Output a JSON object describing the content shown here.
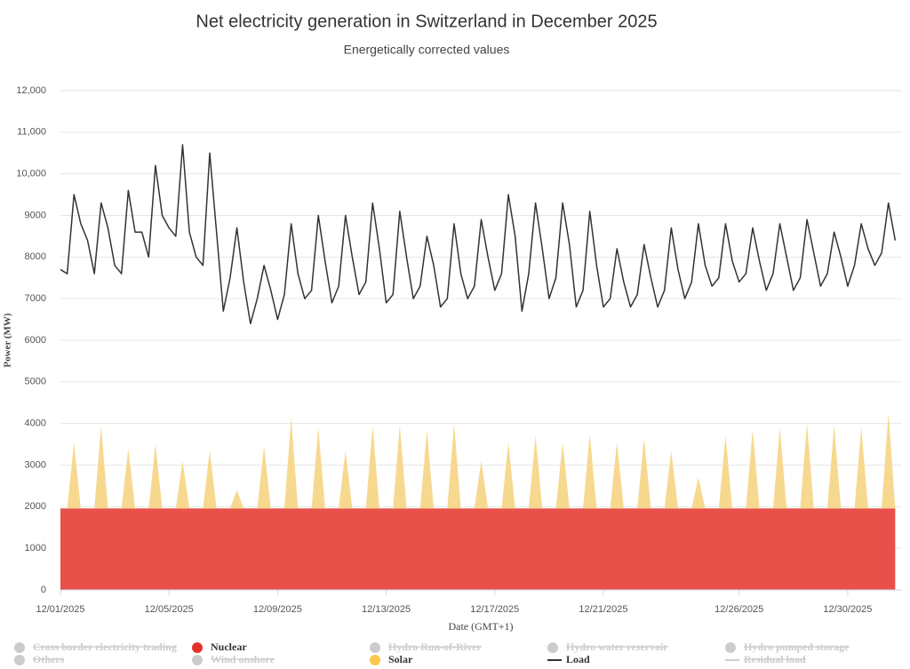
{
  "chart_data": {
    "type": "line",
    "title": "Net electricity generation in Switzerland in December 2025",
    "subtitle": "Energetically corrected values",
    "y_label": "Power (MW)",
    "x_label": "Date (GMT+1)",
    "grid": true,
    "ylim": [
      0,
      12000
    ],
    "yticks": [
      0,
      1000,
      2000,
      3000,
      4000,
      5000,
      6000,
      7000,
      8000,
      9000,
      {
        "value": 10000,
        "label": "10,000"
      },
      {
        "value": 11000,
        "label": "11,000"
      },
      {
        "value": 12000,
        "label": "12,000"
      }
    ],
    "xlim": [
      0,
      31
    ],
    "xticks": [
      {
        "value": 0,
        "label": "12/01/2025"
      },
      {
        "value": 4,
        "label": "12/05/2025"
      },
      {
        "value": 8,
        "label": "12/09/2025"
      },
      {
        "value": 12,
        "label": "12/13/2025"
      },
      {
        "value": 16,
        "label": "12/17/2025"
      },
      {
        "value": 20,
        "label": "12/21/2025"
      },
      {
        "value": 25,
        "label": "12/26/2025"
      },
      {
        "value": 29,
        "label": "12/30/2025"
      }
    ],
    "x": [
      0,
      0.25,
      0.5,
      0.75,
      1,
      1.25,
      1.5,
      1.75,
      2,
      2.25,
      2.5,
      2.75,
      3,
      3.25,
      3.5,
      3.75,
      4,
      4.25,
      4.5,
      4.75,
      5,
      5.25,
      5.5,
      5.75,
      6,
      6.25,
      6.5,
      6.75,
      7,
      7.25,
      7.5,
      7.75,
      8,
      8.25,
      8.5,
      8.75,
      9,
      9.25,
      9.5,
      9.75,
      10,
      10.25,
      10.5,
      10.75,
      11,
      11.25,
      11.5,
      11.75,
      12,
      12.25,
      12.5,
      12.75,
      13,
      13.25,
      13.5,
      13.75,
      14,
      14.25,
      14.5,
      14.75,
      15,
      15.25,
      15.5,
      15.75,
      16,
      16.25,
      16.5,
      16.75,
      17,
      17.25,
      17.5,
      17.75,
      18,
      18.25,
      18.5,
      18.75,
      19,
      19.25,
      19.5,
      19.75,
      20,
      20.25,
      20.5,
      20.75,
      21,
      21.25,
      21.5,
      21.75,
      22,
      22.25,
      22.5,
      22.75,
      23,
      23.25,
      23.5,
      23.75,
      24,
      24.25,
      24.5,
      24.75,
      25,
      25.25,
      25.5,
      25.75,
      26,
      26.25,
      26.5,
      26.75,
      27,
      27.25,
      27.5,
      27.75,
      28,
      28.25,
      28.5,
      28.75,
      29,
      29.25,
      29.5,
      29.75,
      30,
      30.25,
      30.5,
      30.75
    ],
    "series": [
      {
        "name": "Cross border electricity trading",
        "kind": "area",
        "visible": false,
        "color": "#cccccc"
      },
      {
        "name": "Nuclear",
        "kind": "area",
        "visible": true,
        "color": "#e8504a",
        "values": [
          1960,
          1960,
          1960,
          1960,
          1960,
          1960,
          1960,
          1960,
          1960,
          1960,
          1960,
          1960,
          1960,
          1960,
          1960,
          1960,
          1960,
          1960,
          1960,
          1960,
          1960,
          1960,
          1960,
          1960,
          1960,
          1960,
          1960,
          1960,
          1960,
          1960,
          1960,
          1960,
          1960,
          1960,
          1960,
          1960,
          1960,
          1960,
          1960,
          1960,
          1960,
          1960,
          1960,
          1960,
          1960,
          1960,
          1960,
          1960,
          1960,
          1960,
          1960,
          1960,
          1960,
          1960,
          1960,
          1960,
          1960,
          1960,
          1960,
          1960,
          1960,
          1960,
          1960,
          1960,
          1960,
          1960,
          1960,
          1960,
          1960,
          1960,
          1960,
          1960,
          1960,
          1960,
          1960,
          1960,
          1960,
          1960,
          1960,
          1960,
          1960,
          1960,
          1960,
          1960,
          1960,
          1960,
          1960,
          1960,
          1960,
          1960,
          1960,
          1960,
          1960,
          1960,
          1960,
          1960,
          1960,
          1960,
          1960,
          1960,
          1960,
          1960,
          1960,
          1960,
          1960,
          1960,
          1960,
          1960,
          1960,
          1960,
          1960,
          1960,
          1960,
          1960,
          1960,
          1960,
          1960,
          1960,
          1960,
          1960,
          1960,
          1960,
          1960,
          1960
        ]
      },
      {
        "name": "Hydro Run-of-River",
        "kind": "area",
        "visible": false,
        "color": "#cccccc"
      },
      {
        "name": "Hydro water reservoir",
        "kind": "area",
        "visible": false,
        "color": "#cccccc"
      },
      {
        "name": "Hydro pumped storage",
        "kind": "area",
        "visible": false,
        "color": "#cccccc"
      },
      {
        "name": "Others",
        "kind": "area",
        "visible": false,
        "color": "#cccccc"
      },
      {
        "name": "Wind onshore",
        "kind": "area",
        "visible": false,
        "color": "#cccccc"
      },
      {
        "name": "Solar",
        "kind": "area",
        "visible": true,
        "color": "#f7d88f",
        "values": [
          0,
          0,
          1590,
          0,
          0,
          0,
          1990,
          0,
          0,
          0,
          1440,
          0,
          0,
          0,
          1540,
          0,
          0,
          0,
          1140,
          0,
          0,
          0,
          1390,
          0,
          0,
          0,
          440,
          0,
          0,
          0,
          1490,
          0,
          0,
          0,
          2190,
          0,
          0,
          0,
          1940,
          0,
          0,
          0,
          1390,
          0,
          0,
          0,
          1990,
          0,
          0,
          0,
          1990,
          0,
          0,
          0,
          1890,
          0,
          0,
          0,
          2040,
          0,
          0,
          0,
          1140,
          0,
          0,
          0,
          1590,
          0,
          0,
          0,
          1740,
          0,
          0,
          0,
          1590,
          0,
          0,
          0,
          1790,
          0,
          0,
          0,
          1590,
          0,
          0,
          0,
          1690,
          0,
          0,
          0,
          1390,
          0,
          0,
          0,
          740,
          0,
          0,
          0,
          1740,
          0,
          0,
          0,
          1890,
          0,
          0,
          0,
          1940,
          0,
          0,
          0,
          2040,
          0,
          0,
          0,
          1990,
          0,
          0,
          0,
          1940,
          0,
          0,
          0,
          2290,
          0
        ]
      },
      {
        "name": "Load",
        "kind": "line",
        "visible": true,
        "color": "#333333",
        "values": [
          7700,
          7600,
          9500,
          8800,
          8400,
          7600,
          9300,
          8700,
          7800,
          7600,
          9600,
          8600,
          8600,
          8000,
          10200,
          9000,
          8700,
          8500,
          10700,
          8600,
          8000,
          7800,
          10500,
          8600,
          6700,
          7500,
          8700,
          7400,
          6400,
          7000,
          7800,
          7200,
          6500,
          7100,
          8800,
          7600,
          7000,
          7200,
          9000,
          7900,
          6900,
          7300,
          9000,
          8000,
          7100,
          7400,
          9300,
          8200,
          6900,
          7100,
          9100,
          8000,
          7000,
          7300,
          8500,
          7800,
          6800,
          7000,
          8800,
          7600,
          7000,
          7300,
          8900,
          8000,
          7200,
          7600,
          9500,
          8500,
          6700,
          7600,
          9300,
          8200,
          7000,
          7500,
          9300,
          8300,
          6800,
          7200,
          9100,
          7800,
          6800,
          7000,
          8200,
          7400,
          6800,
          7100,
          8300,
          7500,
          6800,
          7200,
          8700,
          7700,
          7000,
          7400,
          8800,
          7800,
          7300,
          7500,
          8800,
          7900,
          7400,
          7600,
          8700,
          7900,
          7200,
          7600,
          8800,
          8000,
          7200,
          7500,
          8900,
          8100,
          7300,
          7600,
          8600,
          8000,
          7300,
          7800,
          8800,
          8200,
          7800,
          8100,
          9300,
          8400
        ]
      },
      {
        "name": "Residual load",
        "kind": "line",
        "visible": false,
        "color": "#cccccc"
      }
    ]
  }
}
